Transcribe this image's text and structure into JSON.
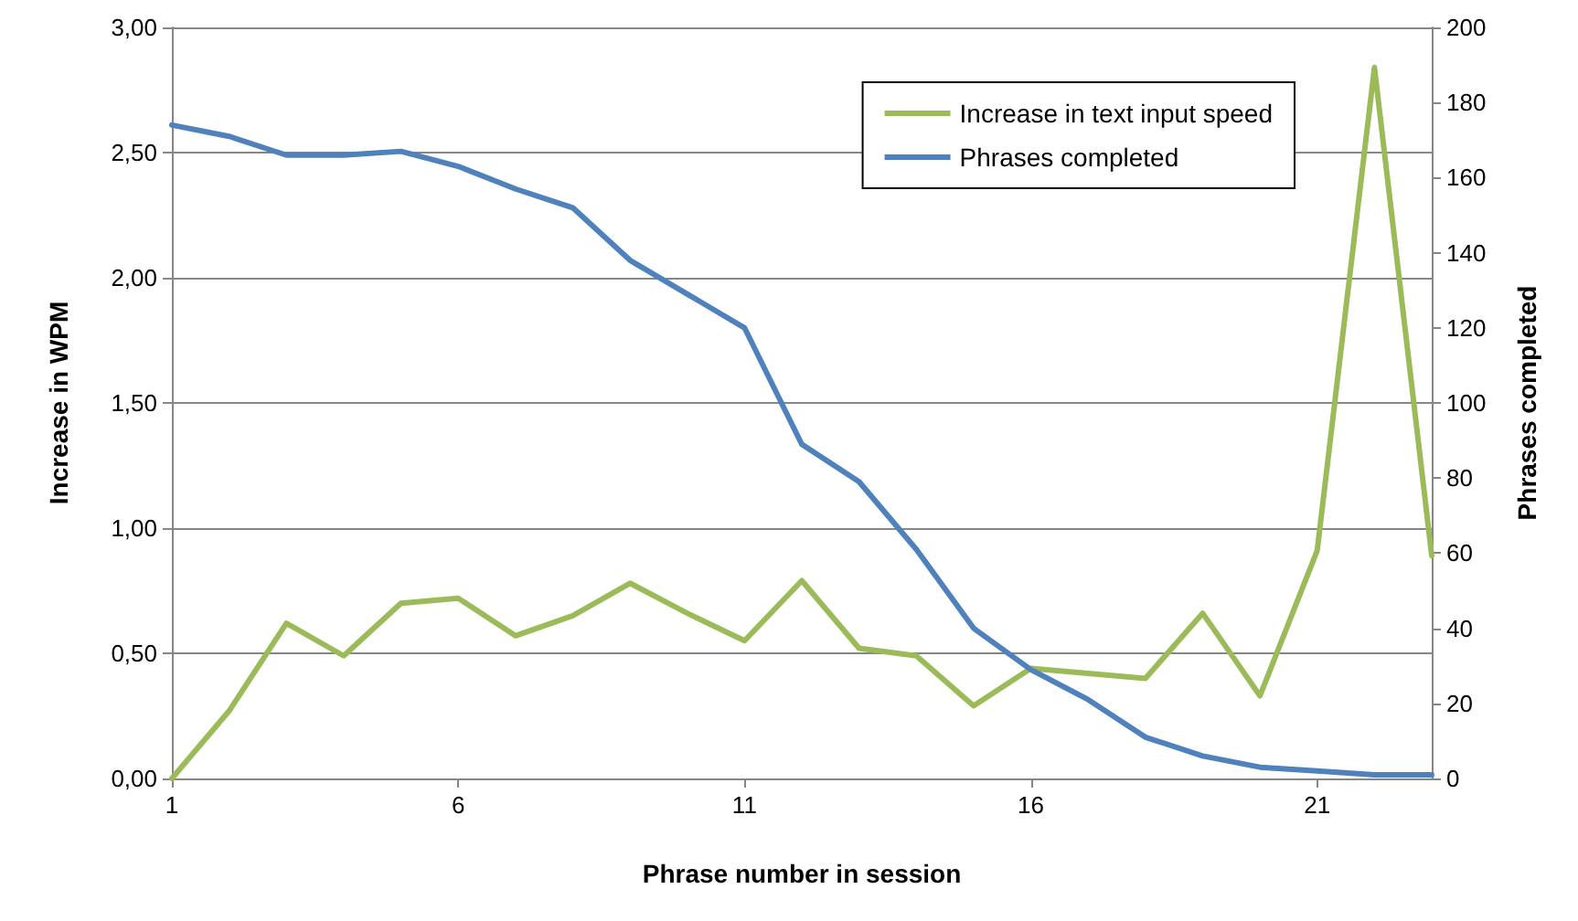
{
  "chart_data": {
    "type": "line",
    "xlabel": "Phrase number in session",
    "ylabel": "Increase in WPM",
    "y2label": "Phrases completed",
    "x": [
      1,
      2,
      3,
      4,
      5,
      6,
      7,
      8,
      9,
      10,
      11,
      12,
      13,
      14,
      15,
      16,
      17,
      18,
      19,
      20,
      21,
      22,
      23
    ],
    "series": [
      {
        "name": "Increase in text input speed",
        "color": "#9bbb59",
        "values": [
          0.0,
          0.27,
          0.62,
          0.49,
          0.7,
          0.72,
          0.57,
          0.65,
          0.78,
          0.66,
          0.55,
          0.79,
          0.52,
          0.49,
          0.29,
          0.44,
          0.42,
          0.4,
          0.66,
          0.33,
          0.91,
          2.84,
          0.89
        ]
      },
      {
        "name": "Phrases completed",
        "color": "#4f81bd",
        "axis": "y2",
        "values": [
          174,
          171,
          166,
          166,
          167,
          163,
          157,
          152,
          138,
          129,
          120,
          89,
          79,
          61,
          40,
          29,
          21,
          11,
          6,
          3,
          2,
          1,
          1
        ]
      }
    ],
    "xlim": [
      1,
      23
    ],
    "xticks": [
      1,
      6,
      11,
      16,
      21
    ],
    "ylim": [
      0,
      3
    ],
    "yticks": [
      {
        "value": 0,
        "label": "0,00"
      },
      {
        "value": 0.5,
        "label": "0,50"
      },
      {
        "value": 1,
        "label": "1,00"
      },
      {
        "value": 1.5,
        "label": "1,50"
      },
      {
        "value": 2,
        "label": "2,00"
      },
      {
        "value": 2.5,
        "label": "2,50"
      },
      {
        "value": 3,
        "label": "3,00"
      }
    ],
    "y2lim": [
      0,
      200
    ],
    "y2ticks": [
      0,
      20,
      40,
      60,
      80,
      100,
      120,
      140,
      160,
      180,
      200
    ],
    "grid": "y",
    "legend": "top right",
    "marker": "none",
    "line_style": "solid"
  }
}
